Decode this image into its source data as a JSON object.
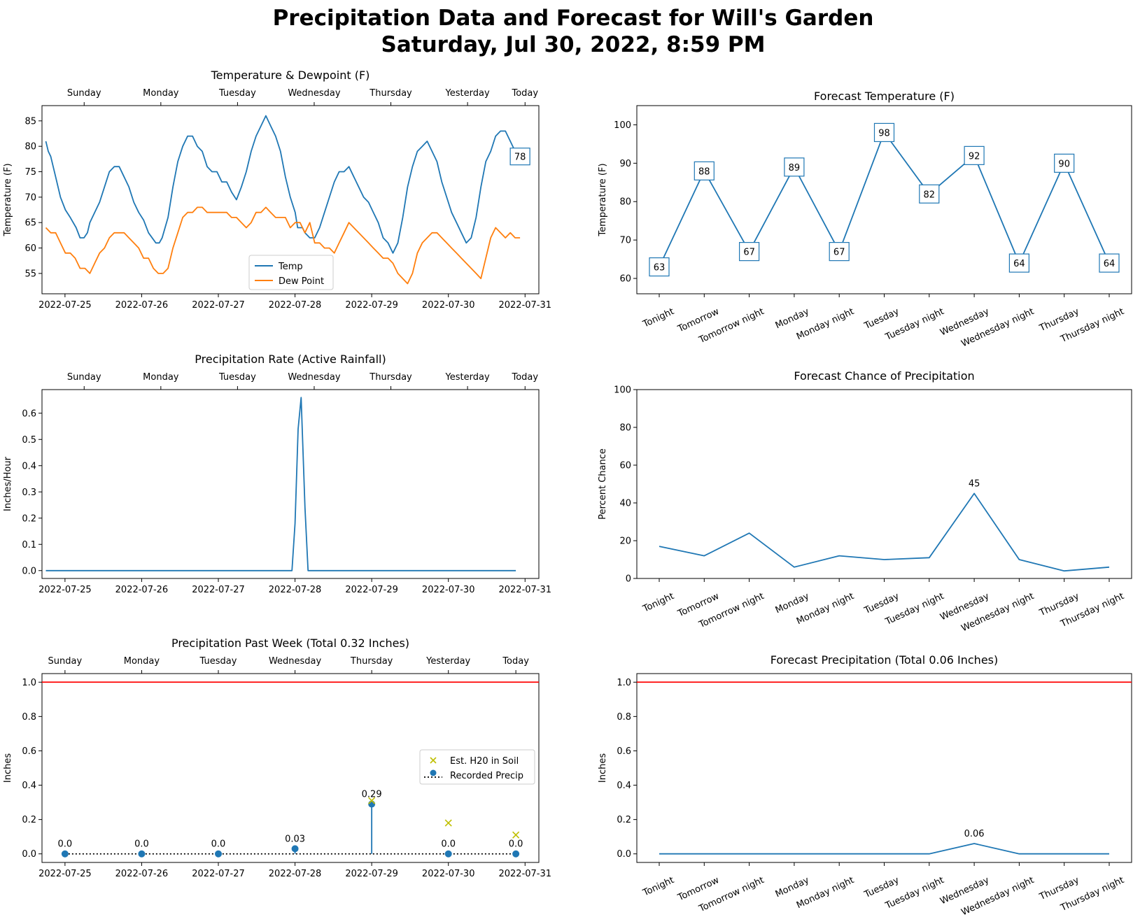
{
  "figure": {
    "title_line1": "Precipitation Data and Forecast for Will's Garden",
    "title_line2": "Saturday, Jul 30, 2022, 8:59 PM"
  },
  "colors": {
    "blue": "#1f77b4",
    "orange": "#ff7f0e",
    "red": "#ff0000",
    "yellow": "#bfbf00",
    "black": "#000000"
  },
  "chart_data": [
    {
      "id": "temp_dew",
      "type": "line",
      "title": "Temperature & Dewpoint (F)",
      "ylabel": "Temperature (F)",
      "xlabel": "",
      "x_ticks": [
        "2022-07-25",
        "2022-07-26",
        "2022-07-27",
        "2022-07-28",
        "2022-07-29",
        "2022-07-30",
        "2022-07-31"
      ],
      "top_ticks": [
        "Sunday",
        "Monday",
        "Tuesday",
        "Wednesday",
        "Thursday",
        "Yesterday",
        "Today"
      ],
      "xlim_days": [
        -0.3,
        6.18
      ],
      "ylim": [
        51,
        88
      ],
      "y_ticks": [
        55,
        60,
        65,
        70,
        75,
        80,
        85
      ],
      "legend": "lower center",
      "series": [
        {
          "name": "Temp",
          "color": "blue",
          "points": [
            [
              0,
              81
            ],
            [
              0.05,
              79
            ],
            [
              0.1,
              78
            ],
            [
              0.2,
              74
            ],
            [
              0.3,
              70
            ],
            [
              0.4,
              67.5
            ],
            [
              0.5,
              66
            ],
            [
              0.62,
              64
            ],
            [
              0.7,
              62
            ],
            [
              0.78,
              62
            ],
            [
              0.85,
              63
            ],
            [
              0.9,
              65
            ],
            [
              1.0,
              67
            ],
            [
              1.1,
              69
            ],
            [
              1.2,
              72
            ],
            [
              1.3,
              75
            ],
            [
              1.4,
              76
            ],
            [
              1.5,
              76
            ],
            [
              1.6,
              74
            ],
            [
              1.7,
              72
            ],
            [
              1.8,
              69
            ],
            [
              1.9,
              67
            ],
            [
              2.0,
              65.5
            ],
            [
              2.1,
              63
            ],
            [
              2.25,
              61
            ],
            [
              2.32,
              61
            ],
            [
              2.38,
              62
            ],
            [
              2.5,
              66
            ],
            [
              2.6,
              72
            ],
            [
              2.7,
              77
            ],
            [
              2.8,
              80
            ],
            [
              2.9,
              82
            ],
            [
              3.0,
              82
            ],
            [
              3.1,
              80
            ],
            [
              3.2,
              79
            ],
            [
              3.3,
              76
            ],
            [
              3.4,
              75
            ],
            [
              3.5,
              75
            ],
            [
              3.6,
              73
            ],
            [
              3.7,
              73
            ],
            [
              3.8,
              71
            ],
            [
              3.9,
              69.5
            ],
            [
              4.0,
              72
            ],
            [
              4.1,
              75
            ],
            [
              4.2,
              79
            ],
            [
              4.3,
              82
            ],
            [
              4.4,
              84
            ],
            [
              4.5,
              86
            ],
            [
              4.6,
              84
            ],
            [
              4.7,
              82
            ],
            [
              4.8,
              79
            ],
            [
              4.9,
              74
            ],
            [
              5.0,
              70
            ],
            [
              5.1,
              67
            ],
            [
              5.15,
              64
            ],
            [
              5.25,
              64
            ],
            [
              5.3,
              63
            ],
            [
              5.4,
              62
            ],
            [
              5.5,
              62
            ],
            [
              5.6,
              64
            ],
            [
              5.7,
              67
            ],
            [
              5.8,
              70
            ],
            [
              5.9,
              73
            ],
            [
              6.0,
              75
            ],
            [
              6.1,
              75
            ],
            [
              6.2,
              76
            ],
            [
              6.3,
              74
            ],
            [
              6.4,
              72
            ],
            [
              6.5,
              70
            ],
            [
              6.6,
              69
            ],
            [
              6.7,
              67
            ],
            [
              6.8,
              65
            ],
            [
              6.9,
              62
            ],
            [
              7.0,
              61
            ],
            [
              7.1,
              59
            ],
            [
              7.2,
              61
            ],
            [
              7.3,
              66
            ],
            [
              7.4,
              72
            ],
            [
              7.5,
              76
            ],
            [
              7.6,
              79
            ],
            [
              7.7,
              80
            ],
            [
              7.8,
              81
            ],
            [
              7.9,
              79
            ],
            [
              8.0,
              77
            ],
            [
              8.1,
              73
            ],
            [
              8.2,
              70
            ],
            [
              8.3,
              67
            ],
            [
              8.4,
              65
            ],
            [
              8.5,
              63
            ],
            [
              8.6,
              61
            ],
            [
              8.7,
              62
            ],
            [
              8.8,
              66
            ],
            [
              8.9,
              72
            ],
            [
              9.0,
              77
            ],
            [
              9.1,
              79
            ],
            [
              9.2,
              82
            ],
            [
              9.3,
              83
            ],
            [
              9.4,
              83
            ],
            [
              9.5,
              81
            ],
            [
              9.6,
              79
            ],
            [
              9.7,
              78
            ]
          ]
        },
        {
          "name": "Dew Point",
          "color": "orange",
          "points": [
            [
              0,
              64
            ],
            [
              0.1,
              63
            ],
            [
              0.2,
              63
            ],
            [
              0.3,
              61
            ],
            [
              0.4,
              59
            ],
            [
              0.5,
              59
            ],
            [
              0.6,
              58
            ],
            [
              0.7,
              56
            ],
            [
              0.8,
              56
            ],
            [
              0.9,
              55
            ],
            [
              1.0,
              57
            ],
            [
              1.1,
              59
            ],
            [
              1.2,
              60
            ],
            [
              1.3,
              62
            ],
            [
              1.4,
              63
            ],
            [
              1.5,
              63
            ],
            [
              1.6,
              63
            ],
            [
              1.7,
              62
            ],
            [
              1.8,
              61
            ],
            [
              1.9,
              60
            ],
            [
              2.0,
              58
            ],
            [
              2.1,
              58
            ],
            [
              2.2,
              56
            ],
            [
              2.3,
              55
            ],
            [
              2.4,
              55
            ],
            [
              2.5,
              56
            ],
            [
              2.6,
              60
            ],
            [
              2.7,
              63
            ],
            [
              2.8,
              66
            ],
            [
              2.9,
              67
            ],
            [
              3.0,
              67
            ],
            [
              3.1,
              68
            ],
            [
              3.2,
              68
            ],
            [
              3.3,
              67
            ],
            [
              3.4,
              67
            ],
            [
              3.5,
              67
            ],
            [
              3.6,
              67
            ],
            [
              3.7,
              67
            ],
            [
              3.8,
              66
            ],
            [
              3.9,
              66
            ],
            [
              4.0,
              65
            ],
            [
              4.1,
              64
            ],
            [
              4.2,
              65
            ],
            [
              4.3,
              67
            ],
            [
              4.4,
              67
            ],
            [
              4.5,
              68
            ],
            [
              4.6,
              67
            ],
            [
              4.7,
              66
            ],
            [
              4.8,
              66
            ],
            [
              4.9,
              66
            ],
            [
              5.0,
              64
            ],
            [
              5.1,
              65
            ],
            [
              5.2,
              65
            ],
            [
              5.3,
              63
            ],
            [
              5.4,
              65
            ],
            [
              5.5,
              61
            ],
            [
              5.6,
              61
            ],
            [
              5.7,
              60
            ],
            [
              5.8,
              60
            ],
            [
              5.9,
              59
            ],
            [
              6.0,
              61
            ],
            [
              6.1,
              63
            ],
            [
              6.2,
              65
            ],
            [
              6.3,
              64
            ],
            [
              6.4,
              63
            ],
            [
              6.5,
              62
            ],
            [
              6.6,
              61
            ],
            [
              6.7,
              60
            ],
            [
              6.8,
              59
            ],
            [
              6.9,
              58
            ],
            [
              7.0,
              58
            ],
            [
              7.1,
              57
            ],
            [
              7.2,
              55
            ],
            [
              7.3,
              54
            ],
            [
              7.4,
              53
            ],
            [
              7.5,
              55
            ],
            [
              7.6,
              59
            ],
            [
              7.7,
              61
            ],
            [
              7.8,
              62
            ],
            [
              7.9,
              63
            ],
            [
              8.0,
              63
            ],
            [
              8.1,
              62
            ],
            [
              8.2,
              61
            ],
            [
              8.3,
              60
            ],
            [
              8.4,
              59
            ],
            [
              8.5,
              58
            ],
            [
              8.6,
              57
            ],
            [
              8.7,
              56
            ],
            [
              8.8,
              55
            ],
            [
              8.9,
              54
            ],
            [
              9.0,
              58
            ],
            [
              9.1,
              62
            ],
            [
              9.2,
              64
            ],
            [
              9.3,
              63
            ],
            [
              9.4,
              62
            ],
            [
              9.5,
              63
            ],
            [
              9.6,
              62
            ],
            [
              9.7,
              62
            ]
          ]
        }
      ],
      "x_day_per_unit": 0.6376,
      "end_label": "78"
    },
    {
      "id": "fc_temp",
      "type": "line",
      "title": "Forecast Temperature (F)",
      "ylabel": "Temperature (F)",
      "xlabel": "",
      "categories": [
        "Tonight",
        "Tomorrow",
        "Tomorrow night",
        "Monday",
        "Monday night",
        "Tuesday",
        "Tuesday night",
        "Wednesday",
        "Wednesday night",
        "Thursday",
        "Thursday night"
      ],
      "values": [
        63,
        88,
        67,
        89,
        67,
        98,
        82,
        92,
        64,
        90,
        64
      ],
      "data_labels": [
        "63",
        "88",
        "67",
        "89",
        "67",
        "98",
        "82",
        "92",
        "64",
        "90",
        "64"
      ],
      "ylim": [
        56,
        105
      ],
      "y_ticks": [
        60,
        70,
        80,
        90,
        100
      ]
    },
    {
      "id": "precip_rate",
      "type": "line",
      "title": "Precipitation Rate (Active Rainfall)",
      "ylabel": "Inches/Hour",
      "xlabel": "",
      "x_ticks": [
        "2022-07-25",
        "2022-07-26",
        "2022-07-27",
        "2022-07-28",
        "2022-07-29",
        "2022-07-30",
        "2022-07-31"
      ],
      "top_ticks": [
        "Sunday",
        "Monday",
        "Tuesday",
        "Wednesday",
        "Thursday",
        "Yesterday",
        "Today"
      ],
      "ylim": [
        -0.03,
        0.69
      ],
      "y_ticks": [
        0.0,
        0.1,
        0.2,
        0.3,
        0.4,
        0.5,
        0.6
      ],
      "series": [
        {
          "name": "",
          "color": "blue",
          "points_days": [
            [
              -0.25,
              0
            ],
            [
              2.96,
              0
            ],
            [
              3.0,
              0.18
            ],
            [
              3.04,
              0.54
            ],
            [
              3.08,
              0.66
            ],
            [
              3.13,
              0.24
            ],
            [
              3.17,
              0
            ],
            [
              5.88,
              0
            ]
          ]
        }
      ]
    },
    {
      "id": "fc_chance",
      "type": "line",
      "title": "Forecast Chance of Precipitation",
      "ylabel": "Percent Chance",
      "xlabel": "",
      "categories": [
        "Tonight",
        "Tomorrow",
        "Tomorrow night",
        "Monday",
        "Monday night",
        "Tuesday",
        "Tuesday night",
        "Wednesday",
        "Wednesday night",
        "Thursday",
        "Thursday night"
      ],
      "values": [
        17,
        12,
        24,
        6,
        12,
        10,
        11,
        45,
        10,
        4,
        6
      ],
      "peak_label": "45",
      "ylim": [
        0,
        100
      ],
      "y_ticks": [
        0,
        20,
        40,
        60,
        80,
        100
      ]
    },
    {
      "id": "precip_week",
      "type": "scatter",
      "title": "Precipitation Past Week (Total 0.32 Inches)",
      "ylabel": "Inches",
      "xlabel": "",
      "x_ticks": [
        "2022-07-25",
        "2022-07-26",
        "2022-07-27",
        "2022-07-28",
        "2022-07-29",
        "2022-07-30",
        "2022-07-31"
      ],
      "top_ticks": [
        "Sunday",
        "Monday",
        "Tuesday",
        "Wednesday",
        "Thursday",
        "Yesterday",
        "Today"
      ],
      "top_tick_days": [
        0,
        1,
        2,
        3,
        4,
        5,
        5.88
      ],
      "ylim": [
        -0.05,
        1.05
      ],
      "y_ticks": [
        0.0,
        0.2,
        0.4,
        0.6,
        0.8,
        1.0
      ],
      "threshold": 1.0,
      "legend": "center right",
      "series": [
        {
          "name": "Recorded Precip",
          "x_days": [
            0,
            1,
            2,
            3,
            4,
            5,
            5.88
          ],
          "values": [
            0.0,
            0.0,
            0.0,
            0.03,
            0.29,
            0.0,
            0.0
          ],
          "labels": [
            "0.0",
            "0.0",
            "0.0",
            "0.03",
            "0.29",
            "0.0",
            "0.0"
          ]
        },
        {
          "name": "Est. H20 in Soil",
          "x_days": [
            4,
            5,
            5.88
          ],
          "values": [
            0.31,
            0.18,
            0.11
          ]
        }
      ]
    },
    {
      "id": "fc_precip",
      "type": "line",
      "title": "Forecast Precipitation (Total 0.06 Inches)",
      "ylabel": "Inches",
      "xlabel": "",
      "categories": [
        "Tonight",
        "Tomorrow",
        "Tomorrow night",
        "Monday",
        "Monday night",
        "Tuesday",
        "Tuesday night",
        "Wednesday",
        "Wednesday night",
        "Thursday",
        "Thursday night"
      ],
      "values": [
        0,
        0,
        0,
        0,
        0,
        0,
        0,
        0.06,
        0,
        0,
        0
      ],
      "peak_label": "0.06",
      "threshold": 1.0,
      "ylim": [
        -0.05,
        1.05
      ],
      "y_ticks": [
        0.0,
        0.2,
        0.4,
        0.6,
        0.8,
        1.0
      ]
    }
  ]
}
